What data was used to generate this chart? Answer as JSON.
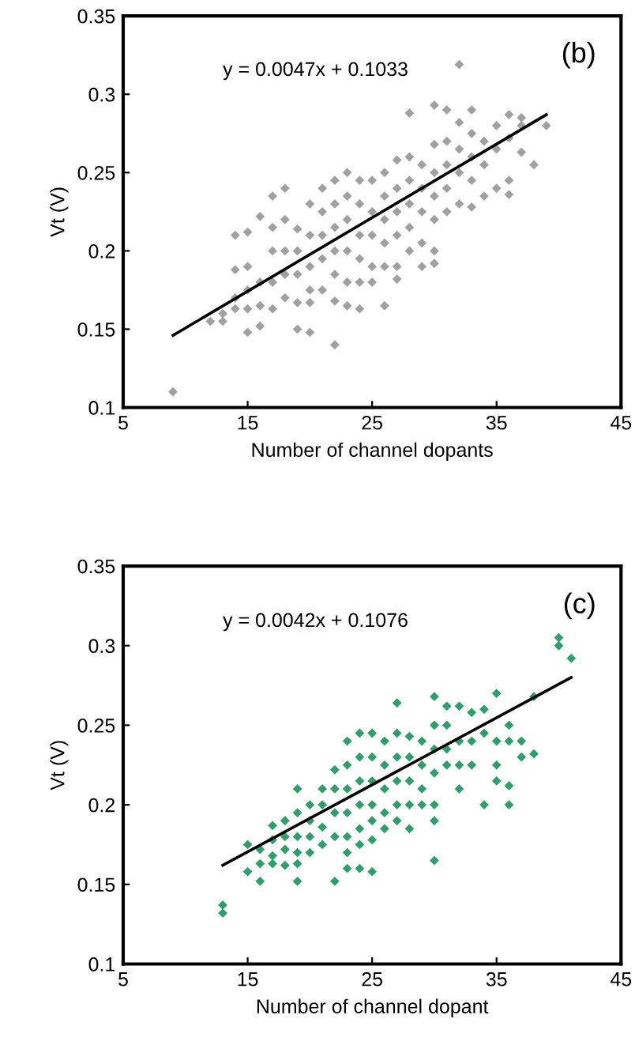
{
  "chart_data": [
    {
      "type": "scatter",
      "xlabel": "Number of channel dopants",
      "ylabel": "Vt (V)",
      "annotations": [
        "y = 0.0047x + 0.1033",
        "(b)"
      ],
      "xlim": [
        5,
        45
      ],
      "xticks": [
        5,
        15,
        25,
        35,
        45
      ],
      "ylim": [
        0.1,
        0.35
      ],
      "yticks": [
        0.1,
        0.15,
        0.2,
        0.25,
        0.3,
        0.35
      ],
      "grid": false,
      "legend": false,
      "series": [
        {
          "color": "#a0a0a0",
          "marker": "diamond",
          "x": [
            9,
            12,
            13,
            13,
            14,
            14,
            14,
            14,
            15,
            15,
            15,
            15,
            15,
            16,
            16,
            16,
            16,
            17,
            17,
            17,
            17,
            17,
            18,
            18,
            18,
            18,
            18,
            19,
            19,
            19,
            19,
            19,
            20,
            20,
            20,
            20,
            20,
            20,
            21,
            21,
            21,
            21,
            21,
            22,
            22,
            22,
            22,
            22,
            22,
            22,
            23,
            23,
            23,
            23,
            23,
            23,
            24,
            24,
            24,
            24,
            24,
            24,
            25,
            25,
            25,
            25,
            25,
            26,
            26,
            26,
            26,
            26,
            26,
            27,
            27,
            27,
            27,
            27,
            27,
            28,
            28,
            28,
            28,
            28,
            28,
            29,
            29,
            29,
            29,
            29,
            30,
            30,
            30,
            30,
            30,
            30,
            30,
            31,
            31,
            31,
            31,
            31,
            32,
            32,
            32,
            32,
            32,
            33,
            33,
            33,
            33,
            33,
            34,
            34,
            34,
            35,
            35,
            35,
            36,
            36,
            36,
            36,
            37,
            37,
            37,
            38,
            39
          ],
          "values": [
            0.11,
            0.155,
            0.16,
            0.155,
            0.21,
            0.188,
            0.17,
            0.163,
            0.212,
            0.19,
            0.175,
            0.163,
            0.148,
            0.222,
            0.18,
            0.165,
            0.152,
            0.235,
            0.215,
            0.2,
            0.18,
            0.163,
            0.24,
            0.22,
            0.2,
            0.185,
            0.17,
            0.214,
            0.2,
            0.185,
            0.167,
            0.15,
            0.23,
            0.21,
            0.19,
            0.175,
            0.167,
            0.148,
            0.24,
            0.225,
            0.21,
            0.195,
            0.175,
            0.245,
            0.23,
            0.215,
            0.2,
            0.185,
            0.168,
            0.14,
            0.25,
            0.235,
            0.22,
            0.2,
            0.18,
            0.165,
            0.245,
            0.23,
            0.21,
            0.195,
            0.18,
            0.163,
            0.245,
            0.225,
            0.21,
            0.19,
            0.18,
            0.25,
            0.235,
            0.22,
            0.205,
            0.19,
            0.165,
            0.258,
            0.24,
            0.225,
            0.21,
            0.19,
            0.182,
            0.288,
            0.26,
            0.245,
            0.23,
            0.215,
            0.2,
            0.255,
            0.24,
            0.225,
            0.205,
            0.19,
            0.293,
            0.268,
            0.25,
            0.235,
            0.22,
            0.2,
            0.192,
            0.29,
            0.27,
            0.255,
            0.24,
            0.225,
            0.319,
            0.282,
            0.265,
            0.25,
            0.23,
            0.29,
            0.275,
            0.26,
            0.245,
            0.228,
            0.27,
            0.255,
            0.235,
            0.28,
            0.265,
            0.24,
            0.287,
            0.272,
            0.245,
            0.236,
            0.285,
            0.28,
            0.263,
            0.255,
            0.28
          ]
        },
        {
          "type": "line",
          "color": "#000000",
          "marker": "none",
          "line_style": "solid",
          "x": [
            9,
            39
          ],
          "values": [
            0.146,
            0.287
          ]
        }
      ]
    },
    {
      "type": "scatter",
      "xlabel": "Number of channel dopant",
      "ylabel": "Vt (V)",
      "annotations": [
        "y = 0.0042x + 0.1076",
        "(c)"
      ],
      "xlim": [
        5,
        45
      ],
      "xticks": [
        5,
        15,
        25,
        35,
        45
      ],
      "ylim": [
        0.1,
        0.35
      ],
      "yticks": [
        0.1,
        0.15,
        0.2,
        0.25,
        0.3,
        0.35
      ],
      "grid": false,
      "legend": false,
      "series": [
        {
          "color": "#2e9e6a",
          "marker": "diamond",
          "x": [
            13,
            13,
            15,
            15,
            16,
            16,
            16,
            17,
            17,
            17,
            17,
            18,
            18,
            18,
            18,
            19,
            19,
            19,
            19,
            19,
            19,
            20,
            20,
            20,
            20,
            21,
            21,
            21,
            21,
            22,
            22,
            22,
            22,
            22,
            23,
            23,
            23,
            23,
            23,
            23,
            23,
            24,
            24,
            24,
            24,
            24,
            24,
            24,
            25,
            25,
            25,
            25,
            25,
            25,
            25,
            26,
            26,
            26,
            26,
            26,
            27,
            27,
            27,
            27,
            27,
            27,
            28,
            28,
            28,
            28,
            28,
            29,
            29,
            29,
            29,
            30,
            30,
            30,
            30,
            30,
            30,
            30,
            31,
            31,
            31,
            31,
            32,
            32,
            32,
            32,
            33,
            33,
            33,
            34,
            34,
            34,
            35,
            35,
            35,
            35,
            36,
            36,
            36,
            36,
            37,
            37,
            38,
            38,
            40,
            40,
            41
          ],
          "values": [
            0.137,
            0.132,
            0.175,
            0.158,
            0.172,
            0.163,
            0.152,
            0.187,
            0.178,
            0.168,
            0.163,
            0.19,
            0.18,
            0.172,
            0.162,
            0.21,
            0.195,
            0.18,
            0.17,
            0.163,
            0.152,
            0.2,
            0.19,
            0.18,
            0.17,
            0.21,
            0.2,
            0.186,
            0.175,
            0.222,
            0.21,
            0.195,
            0.18,
            0.152,
            0.24,
            0.225,
            0.21,
            0.195,
            0.18,
            0.17,
            0.16,
            0.245,
            0.23,
            0.215,
            0.2,
            0.185,
            0.175,
            0.16,
            0.245,
            0.23,
            0.215,
            0.2,
            0.19,
            0.178,
            0.158,
            0.24,
            0.225,
            0.21,
            0.195,
            0.185,
            0.264,
            0.245,
            0.23,
            0.215,
            0.2,
            0.19,
            0.243,
            0.23,
            0.215,
            0.2,
            0.185,
            0.24,
            0.225,
            0.21,
            0.2,
            0.268,
            0.25,
            0.235,
            0.22,
            0.2,
            0.19,
            0.165,
            0.262,
            0.25,
            0.235,
            0.225,
            0.262,
            0.24,
            0.225,
            0.21,
            0.258,
            0.24,
            0.225,
            0.26,
            0.245,
            0.2,
            0.27,
            0.24,
            0.225,
            0.215,
            0.25,
            0.24,
            0.212,
            0.2,
            0.24,
            0.23,
            0.268,
            0.232,
            0.305,
            0.3,
            0.292
          ]
        },
        {
          "type": "line",
          "color": "#000000",
          "marker": "none",
          "line_style": "solid",
          "x": [
            13,
            41
          ],
          "values": [
            0.162,
            0.28
          ]
        }
      ]
    }
  ]
}
